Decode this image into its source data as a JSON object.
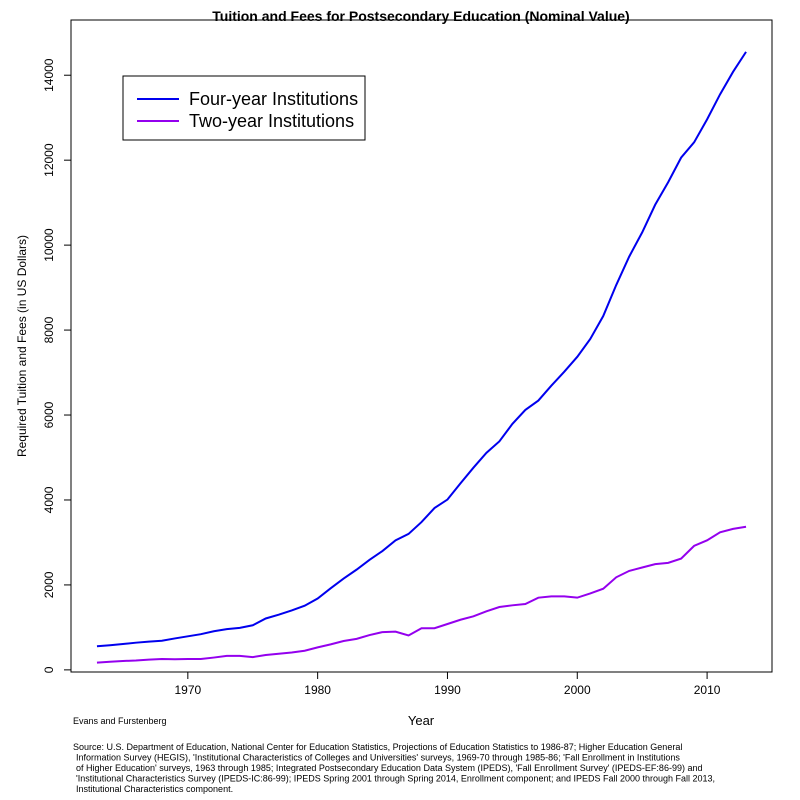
{
  "chart_data": {
    "type": "line",
    "title": "Tuition and Fees for Postsecondary Education (Nominal Value)",
    "x_label": "Year",
    "y_label": "Required Tuition and Fees (in US Dollars)",
    "credit": "Evans and Furstenberg",
    "source": [
      "Source: U.S. Department of Education, National Center for Education Statistics, Projections of Education Statistics to 1986-87; Higher Education General",
      "Information Survey (HEGIS), 'Institutional Characteristics of Colleges and Universities' surveys, 1969-70 through 1985-86; 'Fall Enrollment in Institutions",
      "of Higher Education' surveys, 1963 through 1985; Integrated Postsecondary Education Data System (IPEDS), 'Fall Enrollment Survey' (IPEDS-EF:86-99) and",
      "'Institutional Characteristics Survey (IPEDS-IC:86-99); IPEDS Spring 2001 through Spring 2014, Enrollment component; and IPEDS Fall 2000 through Fall 2013,",
      "Institutional Characteristics component."
    ],
    "x": [
      1963,
      1964,
      1965,
      1966,
      1967,
      1968,
      1969,
      1970,
      1971,
      1972,
      1973,
      1974,
      1975,
      1976,
      1977,
      1978,
      1979,
      1980,
      1981,
      1982,
      1983,
      1984,
      1985,
      1986,
      1987,
      1988,
      1989,
      1990,
      1991,
      1992,
      1993,
      1994,
      1995,
      1996,
      1997,
      1998,
      1999,
      2000,
      2001,
      2002,
      2003,
      2004,
      2005,
      2006,
      2007,
      2008,
      2009,
      2010,
      2011,
      2012,
      2013
    ],
    "series": [
      {
        "name": "Four-year Institutions",
        "color": "#0000ee",
        "values": [
          555,
          580,
          610,
          640,
          665,
          685,
          740,
          790,
          840,
          910,
          960,
          990,
          1050,
          1210,
          1300,
          1400,
          1510,
          1680,
          1920,
          2150,
          2360,
          2590,
          2800,
          3050,
          3200,
          3480,
          3810,
          4010,
          4390,
          4760,
          5110,
          5380,
          5790,
          6120,
          6340,
          6690,
          7020,
          7370,
          7790,
          8330,
          9060,
          9730,
          10300,
          10950,
          11480,
          12060,
          12420,
          12960,
          13550,
          14080,
          14550
        ]
      },
      {
        "name": "Two-year Institutions",
        "color": "#9400ee",
        "values": [
          170,
          190,
          210,
          220,
          240,
          255,
          250,
          255,
          255,
          290,
          330,
          330,
          300,
          350,
          380,
          410,
          450,
          530,
          600,
          680,
          730,
          820,
          890,
          900,
          810,
          980,
          980,
          1080,
          1180,
          1260,
          1380,
          1480,
          1520,
          1550,
          1700,
          1730,
          1730,
          1700,
          1800,
          1910,
          2180,
          2330,
          2410,
          2490,
          2520,
          2620,
          2920,
          3050,
          3240,
          3320,
          3370
        ]
      }
    ],
    "xlim": [
      1961,
      2015
    ],
    "xticks": [
      1970,
      1980,
      1990,
      2000,
      2010
    ],
    "ylim": [
      -50,
      15300
    ],
    "yticks": [
      0,
      2000,
      4000,
      6000,
      8000,
      10000,
      12000,
      14000
    ],
    "legend": "top-left"
  }
}
